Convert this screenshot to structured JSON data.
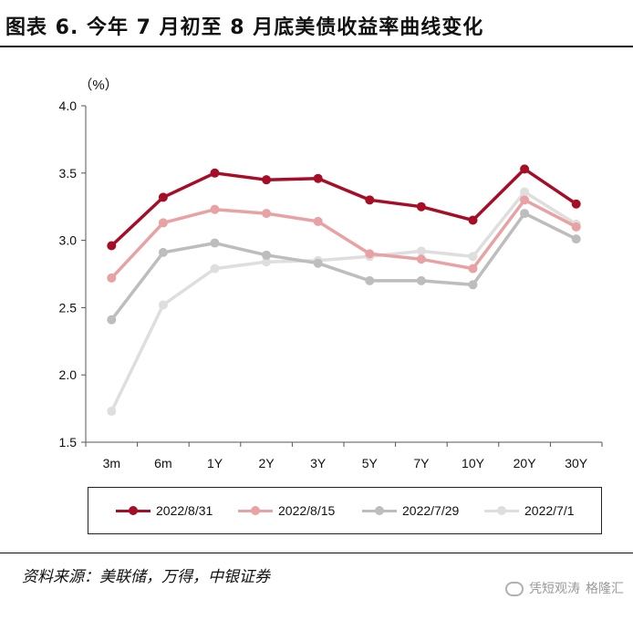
{
  "title": "图表 6. 今年 7 月初至 8 月底美债收益率曲线变化",
  "source": "资料来源：美联储，万得，中银证券",
  "watermark": {
    "line1": "凭短观涛",
    "line2": "格隆汇"
  },
  "chart_data": {
    "type": "line",
    "ylabel": "（%）",
    "ylim": [
      1.5,
      4.0
    ],
    "yticks": [
      "1.5",
      "2.0",
      "2.5",
      "3.0",
      "3.5",
      "4.0"
    ],
    "categories": [
      "3m",
      "6m",
      "1Y",
      "2Y",
      "3Y",
      "5Y",
      "7Y",
      "10Y",
      "20Y",
      "30Y"
    ],
    "grid": false,
    "legend": "bottom",
    "series": [
      {
        "name": "2022/8/31",
        "color": "#a50e26",
        "values": [
          2.96,
          3.32,
          3.5,
          3.45,
          3.46,
          3.3,
          3.25,
          3.15,
          3.53,
          3.27
        ]
      },
      {
        "name": "2022/8/15",
        "color": "#e8a2a3",
        "values": [
          2.72,
          3.13,
          3.23,
          3.2,
          3.14,
          2.9,
          2.86,
          2.79,
          3.3,
          3.1
        ]
      },
      {
        "name": "2022/7/29",
        "color": "#bdbdbd",
        "values": [
          2.41,
          2.91,
          2.98,
          2.89,
          2.83,
          2.7,
          2.7,
          2.67,
          3.2,
          3.01
        ]
      },
      {
        "name": "2022/7/1",
        "color": "#dedede",
        "values": [
          1.73,
          2.52,
          2.79,
          2.84,
          2.85,
          2.88,
          2.92,
          2.88,
          3.36,
          3.12
        ]
      }
    ]
  }
}
